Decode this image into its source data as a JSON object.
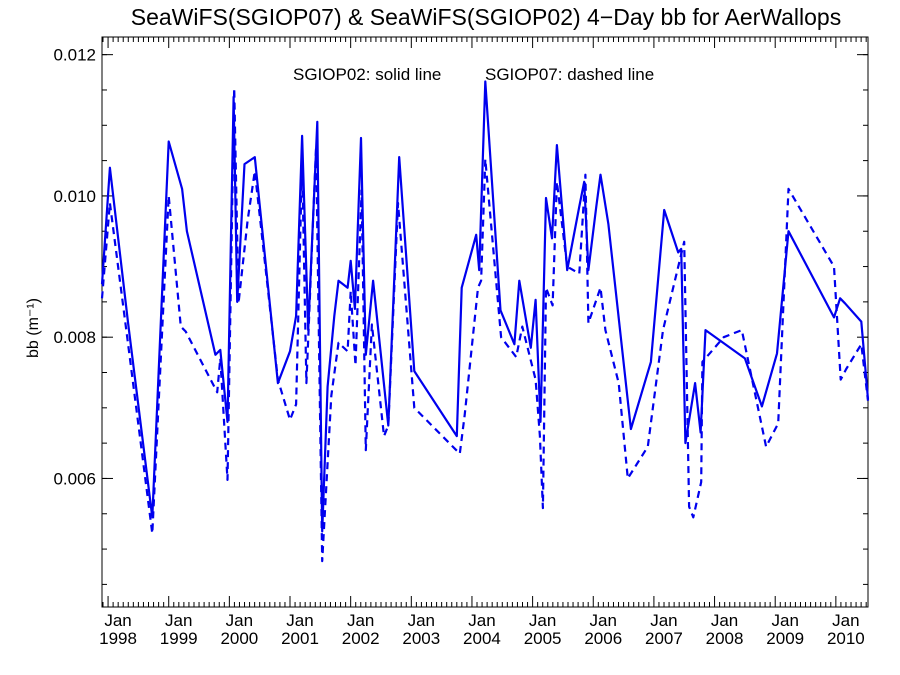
{
  "chart_data": {
    "type": "line",
    "title": "SeaWiFS(SGIOP07) & SeaWiFS(SGIOP02) 4−Day bb for AerWallops",
    "ylabel": "bb (m⁻¹)",
    "xlabel": "",
    "annotation_solid": "SGIOP02: solid line",
    "annotation_dashed": "SGIOP07: dashed line",
    "xlim": [
      1997.9,
      2010.53
    ],
    "ylim": [
      0.00418,
      0.01225
    ],
    "y_ticks": [
      {
        "value": 0.006,
        "label": "0.006"
      },
      {
        "value": 0.008,
        "label": "0.008"
      },
      {
        "value": 0.01,
        "label": "0.010"
      },
      {
        "value": 0.012,
        "label": "0.012"
      }
    ],
    "y_minor_step": 0.0005,
    "x_ticks": [
      {
        "value": 1998,
        "month": "Jan",
        "year": "1998"
      },
      {
        "value": 1999,
        "month": "Jan",
        "year": "1999"
      },
      {
        "value": 2000,
        "month": "Jan",
        "year": "2000"
      },
      {
        "value": 2001,
        "month": "Jan",
        "year": "2001"
      },
      {
        "value": 2002,
        "month": "Jan",
        "year": "2002"
      },
      {
        "value": 2003,
        "month": "Jan",
        "year": "2003"
      },
      {
        "value": 2004,
        "month": "Jan",
        "year": "2004"
      },
      {
        "value": 2005,
        "month": "Jan",
        "year": "2005"
      },
      {
        "value": 2006,
        "month": "Jan",
        "year": "2006"
      },
      {
        "value": 2007,
        "month": "Jan",
        "year": "2007"
      },
      {
        "value": 2008,
        "month": "Jan",
        "year": "2008"
      },
      {
        "value": 2009,
        "month": "Jan",
        "year": "2009"
      },
      {
        "value": 2010,
        "month": "Jan",
        "year": "2010"
      }
    ],
    "line_color": "#0000ee",
    "series": [
      {
        "name": "SGIOP02",
        "style": "solid",
        "points": [
          [
            1997.9,
            0.00875
          ],
          [
            1998.03,
            0.0104
          ],
          [
            1998.33,
            0.0082
          ],
          [
            1998.73,
            0.00545
          ],
          [
            1999.0,
            0.01077
          ],
          [
            1999.22,
            0.0101
          ],
          [
            1999.3,
            0.0095
          ],
          [
            1999.77,
            0.00775
          ],
          [
            1999.85,
            0.00782
          ],
          [
            1999.97,
            0.0068
          ],
          [
            2000.07,
            0.0114
          ],
          [
            2000.13,
            0.0085
          ],
          [
            2000.25,
            0.01045
          ],
          [
            2000.42,
            0.01055
          ],
          [
            2000.8,
            0.00735
          ],
          [
            2001.0,
            0.0078
          ],
          [
            2001.1,
            0.0083
          ],
          [
            2001.2,
            0.01085
          ],
          [
            2001.3,
            0.0081
          ],
          [
            2001.45,
            0.01105
          ],
          [
            2001.53,
            0.00525
          ],
          [
            2001.62,
            0.0073
          ],
          [
            2001.73,
            0.0083
          ],
          [
            2001.8,
            0.0088
          ],
          [
            2001.95,
            0.0087
          ],
          [
            2002.0,
            0.00908
          ],
          [
            2002.07,
            0.0084
          ],
          [
            2002.17,
            0.01082
          ],
          [
            2002.25,
            0.00775
          ],
          [
            2002.37,
            0.0088
          ],
          [
            2002.62,
            0.00675
          ],
          [
            2002.8,
            0.01055
          ],
          [
            2003.05,
            0.00752
          ],
          [
            2003.75,
            0.0066
          ],
          [
            2003.83,
            0.0087
          ],
          [
            2004.07,
            0.00945
          ],
          [
            2004.12,
            0.00895
          ],
          [
            2004.22,
            0.01162
          ],
          [
            2004.47,
            0.00838
          ],
          [
            2004.7,
            0.0079
          ],
          [
            2004.78,
            0.0088
          ],
          [
            2004.97,
            0.00785
          ],
          [
            2005.05,
            0.00853
          ],
          [
            2005.13,
            0.0068
          ],
          [
            2005.22,
            0.00997
          ],
          [
            2005.32,
            0.0094
          ],
          [
            2005.4,
            0.01072
          ],
          [
            2005.57,
            0.00895
          ],
          [
            2005.77,
            0.00985
          ],
          [
            2005.85,
            0.0102
          ],
          [
            2005.92,
            0.00895
          ],
          [
            2006.05,
            0.00985
          ],
          [
            2006.12,
            0.0103
          ],
          [
            2006.25,
            0.0096
          ],
          [
            2006.62,
            0.0067
          ],
          [
            2006.95,
            0.00765
          ],
          [
            2007.17,
            0.0098
          ],
          [
            2007.4,
            0.0092
          ],
          [
            2007.45,
            0.00925
          ],
          [
            2007.52,
            0.0065
          ],
          [
            2007.68,
            0.00735
          ],
          [
            2007.77,
            0.00665
          ],
          [
            2007.85,
            0.0081
          ],
          [
            2008.5,
            0.0077
          ],
          [
            2008.78,
            0.00702
          ],
          [
            2009.03,
            0.00777
          ],
          [
            2009.22,
            0.0095
          ],
          [
            2009.97,
            0.00828
          ],
          [
            2010.07,
            0.00855
          ],
          [
            2010.15,
            0.00848
          ],
          [
            2010.42,
            0.00822
          ],
          [
            2010.53,
            0.00712
          ]
        ]
      },
      {
        "name": "SGIOP07",
        "style": "dashed",
        "points": [
          [
            1997.9,
            0.00855
          ],
          [
            1998.03,
            0.0099
          ],
          [
            1998.3,
            0.0081
          ],
          [
            1998.73,
            0.00522
          ],
          [
            1999.0,
            0.01
          ],
          [
            1999.2,
            0.00815
          ],
          [
            1999.28,
            0.00808
          ],
          [
            1999.8,
            0.00722
          ],
          [
            1999.85,
            0.0077
          ],
          [
            1999.97,
            0.00598
          ],
          [
            2000.08,
            0.01153
          ],
          [
            2000.15,
            0.00848
          ],
          [
            2000.3,
            0.00965
          ],
          [
            2000.42,
            0.01035
          ],
          [
            2000.8,
            0.0074
          ],
          [
            2001.0,
            0.00683
          ],
          [
            2001.1,
            0.00705
          ],
          [
            2001.2,
            0.0105
          ],
          [
            2001.27,
            0.00735
          ],
          [
            2001.43,
            0.0107
          ],
          [
            2001.53,
            0.00483
          ],
          [
            2001.68,
            0.00717
          ],
          [
            2001.8,
            0.00792
          ],
          [
            2001.95,
            0.0078
          ],
          [
            2002.0,
            0.00865
          ],
          [
            2002.08,
            0.0076
          ],
          [
            2002.18,
            0.01008
          ],
          [
            2002.25,
            0.0064
          ],
          [
            2002.35,
            0.00818
          ],
          [
            2002.55,
            0.0066
          ],
          [
            2002.62,
            0.00675
          ],
          [
            2002.78,
            0.0099
          ],
          [
            2003.05,
            0.007
          ],
          [
            2003.8,
            0.00635
          ],
          [
            2003.88,
            0.0069
          ],
          [
            2004.1,
            0.0087
          ],
          [
            2004.15,
            0.0088
          ],
          [
            2004.22,
            0.01052
          ],
          [
            2004.48,
            0.008
          ],
          [
            2004.73,
            0.00772
          ],
          [
            2004.83,
            0.00815
          ],
          [
            2005.05,
            0.0074
          ],
          [
            2005.12,
            0.0066
          ],
          [
            2005.17,
            0.00558
          ],
          [
            2005.22,
            0.0087
          ],
          [
            2005.33,
            0.00845
          ],
          [
            2005.4,
            0.0102
          ],
          [
            2005.57,
            0.009
          ],
          [
            2005.77,
            0.0089
          ],
          [
            2005.87,
            0.0103
          ],
          [
            2005.92,
            0.0082
          ],
          [
            2006.12,
            0.0087
          ],
          [
            2006.2,
            0.0081
          ],
          [
            2006.42,
            0.00735
          ],
          [
            2006.57,
            0.006
          ],
          [
            2006.9,
            0.00645
          ],
          [
            2007.15,
            0.0081
          ],
          [
            2007.5,
            0.00935
          ],
          [
            2007.58,
            0.0056
          ],
          [
            2007.65,
            0.00545
          ],
          [
            2007.78,
            0.00595
          ],
          [
            2007.8,
            0.00765
          ],
          [
            2008.15,
            0.008
          ],
          [
            2008.45,
            0.0081
          ],
          [
            2008.85,
            0.00645
          ],
          [
            2009.05,
            0.00678
          ],
          [
            2009.22,
            0.0101
          ],
          [
            2009.97,
            0.009
          ],
          [
            2010.08,
            0.0074
          ],
          [
            2010.17,
            0.00755
          ],
          [
            2010.42,
            0.0079
          ],
          [
            2010.53,
            0.0071
          ]
        ]
      }
    ]
  }
}
